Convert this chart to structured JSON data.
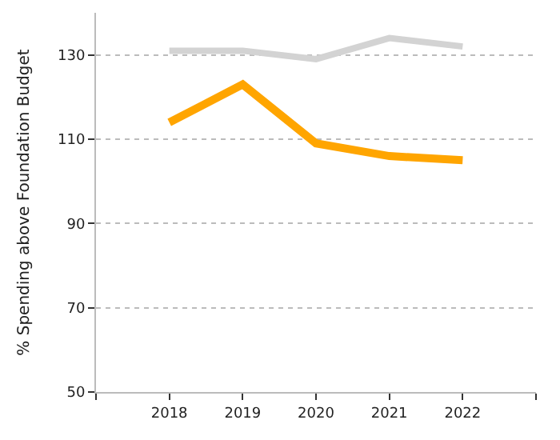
{
  "chart_data": {
    "type": "line",
    "ylabel": "% Spending above Foundation Budget",
    "x": [
      2018,
      2019,
      2020,
      2021,
      2022
    ],
    "series": [
      {
        "color": "#d3d3d3",
        "values": [
          131,
          131,
          129,
          134,
          132
        ]
      },
      {
        "color": "#ffa500",
        "values": [
          114,
          123,
          109,
          106,
          105
        ]
      }
    ],
    "xlim": [
      2017,
      2023
    ],
    "xticks": [
      {
        "value": 2017,
        "label": null
      },
      2018,
      2019,
      2020,
      2021,
      2022,
      {
        "value": 2023,
        "label": null
      }
    ],
    "ylim": [
      50,
      140
    ],
    "yticks": [
      50,
      70,
      90,
      110,
      130
    ],
    "grid": "y",
    "marker": "none",
    "line_style": "solid"
  }
}
